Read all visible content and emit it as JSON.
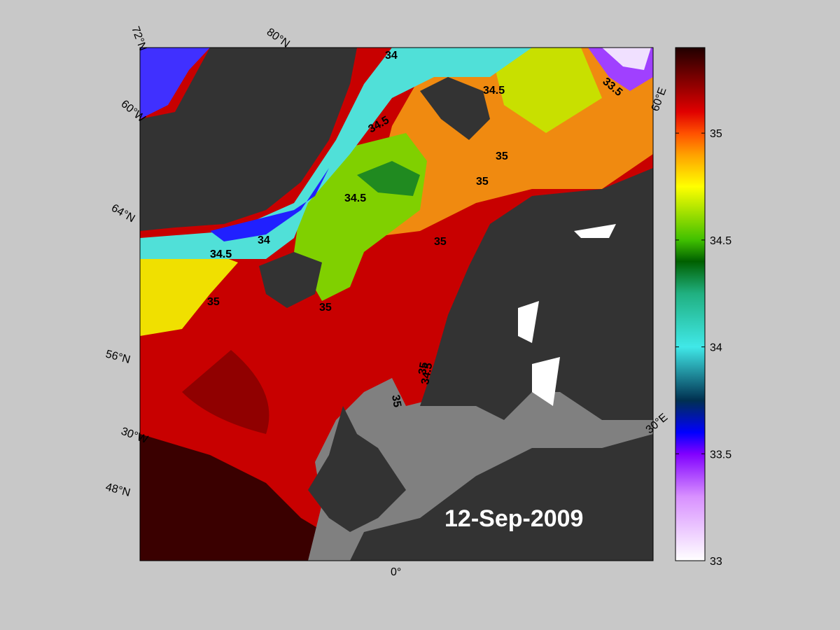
{
  "map": {
    "date": "12-Sep-2009",
    "graticule_labels": [
      "72°N",
      "80°N",
      "60°W",
      "64°N",
      "56°N",
      "30°W",
      "48°N",
      "0°",
      "30°E",
      "60°E"
    ],
    "contour_labels": [
      "34",
      "34.5",
      "34.5",
      "34.5",
      "35",
      "35",
      "34.5",
      "34",
      "34.5",
      "35",
      "35",
      "35",
      "35",
      "34.5",
      "35",
      "33.5"
    ]
  },
  "colorbar": {
    "range": [
      33,
      35.4
    ],
    "ticks": [
      33,
      33.5,
      34,
      34.5,
      35
    ],
    "colormap": [
      {
        "value": 33,
        "color": "#ffffff"
      },
      {
        "value": 33.3,
        "color": "#d890ff"
      },
      {
        "value": 33.5,
        "color": "#8000ff"
      },
      {
        "value": 33.6,
        "color": "#0000ff"
      },
      {
        "value": 33.75,
        "color": "#003050"
      },
      {
        "value": 34,
        "color": "#40e8e8"
      },
      {
        "value": 34.25,
        "color": "#20b080"
      },
      {
        "value": 34.4,
        "color": "#006000"
      },
      {
        "value": 34.5,
        "color": "#40c000"
      },
      {
        "value": 34.75,
        "color": "#ffff00"
      },
      {
        "value": 34.9,
        "color": "#ffa000"
      },
      {
        "value": 35,
        "color": "#ff5000"
      },
      {
        "value": 35.1,
        "color": "#e00000"
      },
      {
        "value": 35.3,
        "color": "#600000"
      },
      {
        "value": 35.4,
        "color": "#200000"
      }
    ]
  }
}
